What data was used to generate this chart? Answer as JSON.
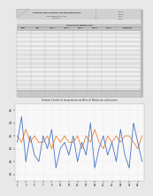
{
  "chart_title": "Formato Control de temperaturas de Área de Medios de cultivo Junio",
  "blue_line": [
    21,
    25,
    18,
    22,
    19,
    18,
    22,
    20,
    23,
    17,
    20,
    21,
    19,
    22,
    18,
    21,
    19,
    24,
    17,
    20,
    22,
    19,
    21,
    18,
    23,
    19,
    17,
    24,
    21,
    18
  ],
  "orange_line": [
    22,
    21,
    23,
    21,
    22,
    21,
    21,
    22,
    20,
    22,
    21,
    22,
    21,
    21,
    22,
    20,
    22,
    21,
    23,
    21,
    20,
    22,
    21,
    22,
    21,
    22,
    22,
    21,
    20,
    22
  ],
  "x_labels": [
    "1",
    "2",
    "3",
    "4",
    "5",
    "6",
    "7",
    "8",
    "9",
    "10",
    "11",
    "12",
    "13",
    "14",
    "15",
    "16",
    "17",
    "18",
    "19",
    "20",
    "21",
    "22",
    "23",
    "24",
    "25",
    "26",
    "27",
    "28",
    "29",
    "30"
  ],
  "ylim": [
    15,
    27
  ],
  "yticks": [
    16,
    18,
    20,
    22,
    24,
    26
  ],
  "bg_color": "#e8e8e8",
  "paper_color": "#ffffff",
  "blue_color": "#4472C4",
  "orange_color": "#ED7D31",
  "header_gray": "#c8c8c8",
  "row_light": "#f2f2f2",
  "row_dark": "#e0e0e0",
  "grid_color": "#c0c0c0"
}
